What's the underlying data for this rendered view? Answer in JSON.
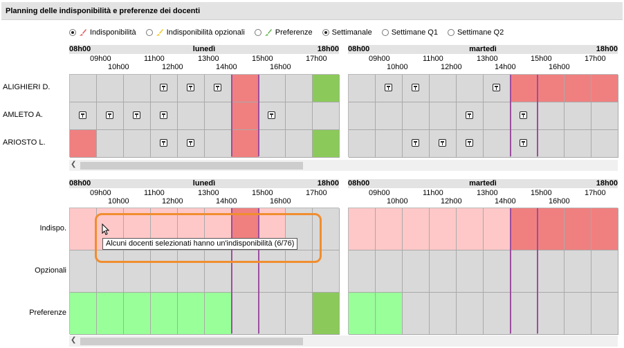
{
  "window": {
    "title": "Planning delle indisponibilità e preferenze dei docenti"
  },
  "options": [
    {
      "label": "Indisponibilità",
      "selected": true,
      "brush_color": "#e5524f"
    },
    {
      "label": "Indisponibilità opzionali",
      "selected": false,
      "brush_color": "#f2c21b"
    },
    {
      "label": "Preferenze",
      "selected": false,
      "brush_color": "#5cb244"
    },
    {
      "label": "Settimanale",
      "selected": true
    },
    {
      "label": "Settimane Q1",
      "selected": false
    },
    {
      "label": "Settimane Q2",
      "selected": false
    }
  ],
  "days": [
    {
      "name": "lunedì",
      "start": "08h00",
      "end": "18h00",
      "ticks_top": [
        "09h00",
        "11h00",
        "13h00",
        "15h00",
        "17h00"
      ],
      "ticks_bottom": [
        "10h00",
        "12h00",
        "14h00",
        "16h00"
      ]
    },
    {
      "name": "martedì",
      "start": "08h00",
      "end": "18h00",
      "ticks_top": [
        "09h00",
        "11h00",
        "13h00",
        "15h00",
        "17h00"
      ],
      "ticks_bottom": [
        "10h00",
        "12h00",
        "14h00",
        "16h00"
      ]
    }
  ],
  "colors": {
    "unavailable": "#f08080",
    "unavailable_light": "#ffc8c8",
    "preference": "#99ff99",
    "preference_dark": "#8bca5a",
    "empty": "#d9d9d9"
  },
  "teachers": [
    {
      "name": "ALIGHIERI D.",
      "slots": [
        [
          "e",
          "e",
          "e",
          "t",
          "t",
          "t",
          "u",
          "e",
          "e",
          "g"
        ],
        [
          "e",
          "t",
          "t",
          "e",
          "e",
          "t",
          "u",
          "u",
          "u",
          "u"
        ]
      ]
    },
    {
      "name": "AMLETO A.",
      "slots": [
        [
          "t",
          "t",
          "t",
          "t",
          "e",
          "e",
          "u",
          "t",
          "e",
          "e"
        ],
        [
          "e",
          "e",
          "e",
          "e",
          "t",
          "e",
          "t",
          "e",
          "e",
          "e"
        ]
      ]
    },
    {
      "name": "ARIOSTO L.",
      "slots": [
        [
          "u",
          "e",
          "e",
          "t",
          "t",
          "e",
          "u",
          "e",
          "e",
          "g"
        ],
        [
          "e",
          "e",
          "t",
          "t",
          "t",
          "e",
          "t",
          "e",
          "e",
          "e"
        ]
      ]
    }
  ],
  "summary_rows": [
    {
      "label": "Indispo.",
      "slots": [
        [
          "l",
          "l",
          "l",
          "l",
          "l",
          "l",
          "u",
          "l",
          "e",
          "e"
        ],
        [
          "l",
          "l",
          "l",
          "l",
          "l",
          "l",
          "u",
          "u",
          "u",
          "u"
        ]
      ]
    },
    {
      "label": "Opzionali",
      "slots": [
        [
          "e",
          "e",
          "e",
          "e",
          "e",
          "e",
          "e",
          "e",
          "e",
          "e"
        ],
        [
          "e",
          "e",
          "e",
          "e",
          "e",
          "e",
          "e",
          "e",
          "e",
          "e"
        ]
      ]
    },
    {
      "label": "Preferenze",
      "slots": [
        [
          "p",
          "p",
          "p",
          "p",
          "p",
          "p",
          "e",
          "e",
          "e",
          "g"
        ],
        [
          "p",
          "p",
          "e",
          "e",
          "e",
          "e",
          "e",
          "e",
          "e",
          "e"
        ]
      ]
    }
  ],
  "tooltip": {
    "text": "Alcuni docenti selezionati hanno un'indisponibilità (6/76)"
  }
}
